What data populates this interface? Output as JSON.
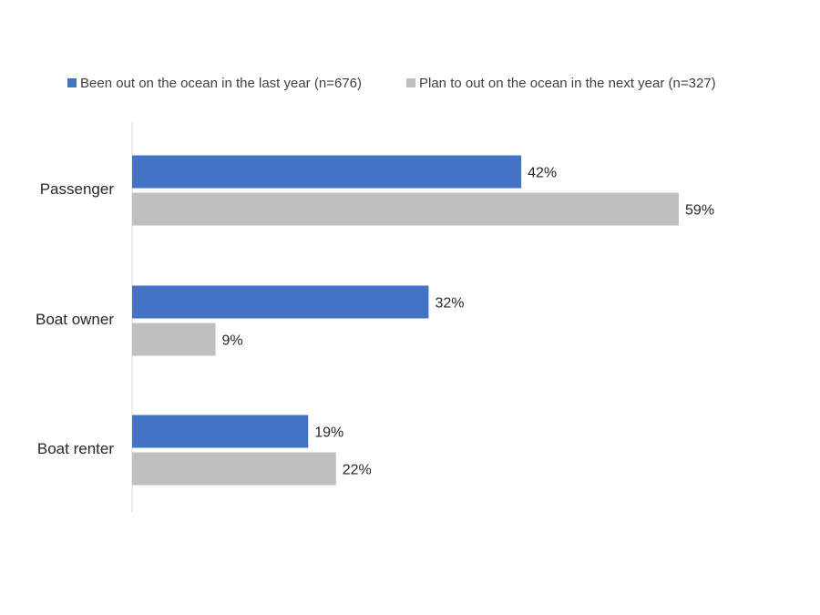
{
  "chart_data": {
    "type": "bar",
    "orientation": "horizontal",
    "categories": [
      "Passenger",
      "Boat owner",
      "Boat renter"
    ],
    "series": [
      {
        "name": "Been out on the ocean in the last year (n=676)",
        "values": [
          42,
          32,
          19
        ],
        "labels": [
          "42%",
          "32%",
          "19%"
        ],
        "color": "#4472C4"
      },
      {
        "name": "Plan to out on the ocean in the next year (n=327)",
        "values": [
          59,
          9,
          22
        ],
        "labels": [
          "59%",
          "9%",
          "22%"
        ],
        "color": "#BFBFBF"
      }
    ],
    "xlim": [
      0,
      70
    ],
    "grid": false,
    "legend_position": "top",
    "axis_color": "#D9D9D9"
  }
}
